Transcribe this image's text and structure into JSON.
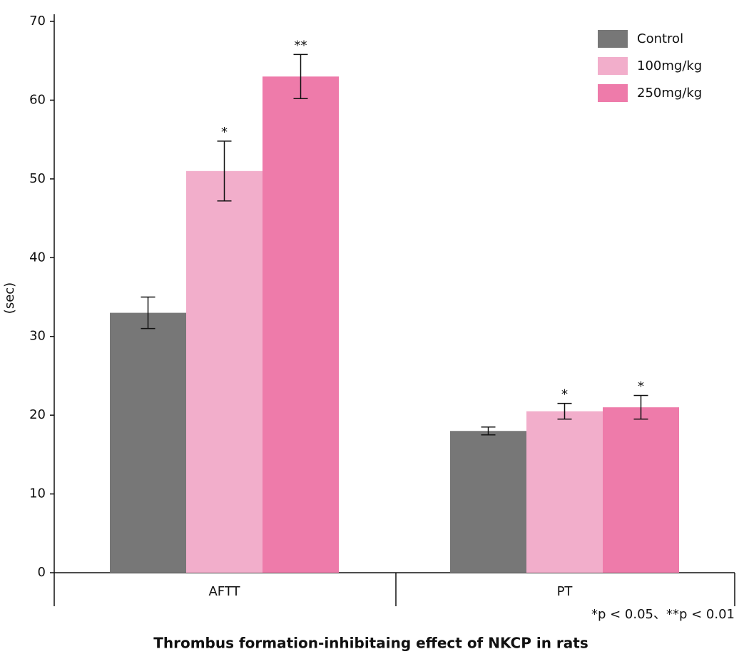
{
  "chart_data": {
    "type": "bar",
    "y_label": "(sec)",
    "categories": [
      "AFTT",
      "PT"
    ],
    "series": [
      {
        "name": "Control",
        "color": "#777777",
        "values": [
          33,
          18
        ],
        "errors": [
          2,
          0.5
        ],
        "annotations": [
          null,
          null
        ]
      },
      {
        "name": "100mg/kg",
        "color": "#f2aecb",
        "values": [
          51,
          20.5
        ],
        "errors": [
          3.8,
          1
        ],
        "annotations": [
          "*",
          "*"
        ]
      },
      {
        "name": "250mg/kg",
        "color": "#ee7baa",
        "values": [
          63,
          21
        ],
        "errors": [
          2.8,
          1.5
        ],
        "annotations": [
          "**",
          "*"
        ]
      }
    ],
    "ylim": [
      0,
      70
    ],
    "yticks": [
      0,
      10,
      20,
      30,
      40,
      50,
      60,
      70
    ],
    "legend": "upper right",
    "footnote": "*p < 0.05、**p < 0.01",
    "caption": "Thrombus formation-inhibitaing effect of NKCP in rats"
  }
}
